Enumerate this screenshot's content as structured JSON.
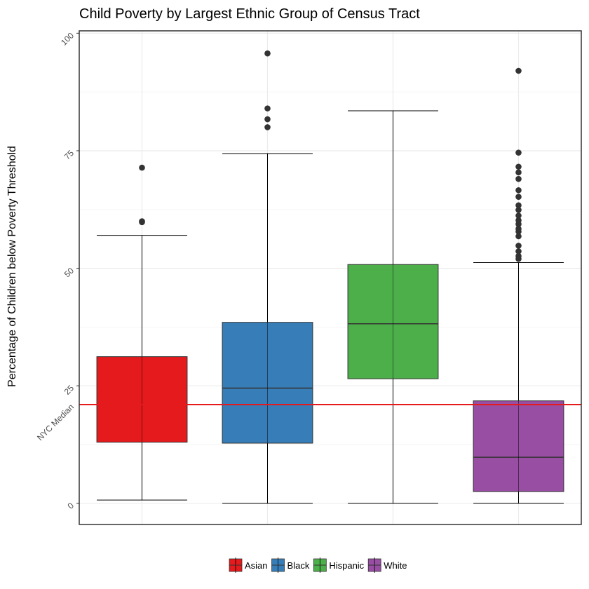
{
  "chart_data": {
    "type": "box",
    "title": "Child Poverty by Largest Ethnic Group of Census Tract",
    "xlabel": "",
    "ylabel": "Percentage of Children below Poverty Threshold",
    "ylim": [
      -4.5,
      100.5
    ],
    "yticks": [
      0,
      25,
      50,
      75,
      100
    ],
    "grid": true,
    "legend_position": "bottom",
    "reference_line": {
      "label": "NYC Median",
      "value": 21,
      "color": "#e41a1c"
    },
    "categories": [
      "Asian",
      "Black",
      "Hispanic",
      "White"
    ],
    "series": [
      {
        "name": "Asian",
        "color": "#e41a1c",
        "whisker_low": 0.7,
        "q1": 13,
        "median": 21,
        "q3": 31.2,
        "whisker_high": 57,
        "outliers": [
          59.8,
          60,
          71.4
        ]
      },
      {
        "name": "Black",
        "color": "#377eb8",
        "whisker_low": 0,
        "q1": 12.8,
        "median": 24.5,
        "q3": 38.5,
        "whisker_high": 74.4,
        "outliers": [
          80,
          81.7,
          84,
          95.7
        ]
      },
      {
        "name": "Hispanic",
        "color": "#4daf4a",
        "whisker_low": 0,
        "q1": 26.5,
        "median": 38.2,
        "q3": 50.8,
        "whisker_high": 83.5
      },
      {
        "name": "White",
        "color": "#984ea3",
        "whisker_low": 0,
        "q1": 2.5,
        "median": 9.8,
        "q3": 21.8,
        "whisker_high": 51.2,
        "outliers": [
          52,
          52.6,
          53.6,
          54.8,
          56.8,
          57.8,
          58.4,
          59.4,
          60.2,
          61.2,
          62.4,
          63.4,
          65.2,
          66.6,
          69,
          70.4,
          71.6,
          74.6,
          92
        ]
      }
    ]
  }
}
